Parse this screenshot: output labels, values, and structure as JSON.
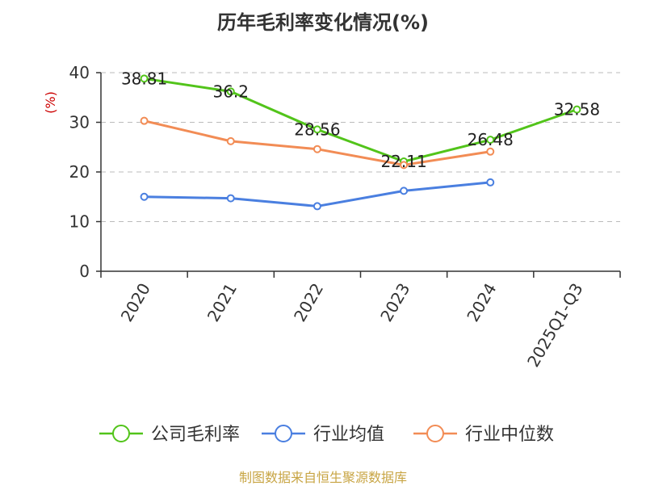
{
  "chart_data": {
    "type": "line",
    "title": "历年毛利率变化情况(%)",
    "ylabel": "(%)",
    "xlabel": "",
    "categories": [
      "2020",
      "2021",
      "2022",
      "2023",
      "2024",
      "2025Q1-Q3"
    ],
    "ylim": [
      0,
      40
    ],
    "yticks": [
      0,
      10,
      20,
      30,
      40
    ],
    "grid": true,
    "legend_position": "bottom",
    "series": [
      {
        "name": "公司毛利率",
        "color": "#52c41a",
        "values": [
          38.81,
          36.2,
          28.56,
          22.11,
          26.48,
          32.58
        ],
        "data_labels": [
          "38.81",
          "36.2",
          "28.56",
          "22.11",
          "26.48",
          "32.58"
        ]
      },
      {
        "name": "行业均值",
        "color": "#4a7fe0",
        "values": [
          15.0,
          14.7,
          13.1,
          16.2,
          17.9,
          null
        ]
      },
      {
        "name": "行业中位数",
        "color": "#f28c55",
        "values": [
          30.3,
          26.2,
          24.6,
          21.4,
          24.1,
          null
        ]
      }
    ]
  },
  "watermark": "制图数据来自恒生聚源数据库"
}
